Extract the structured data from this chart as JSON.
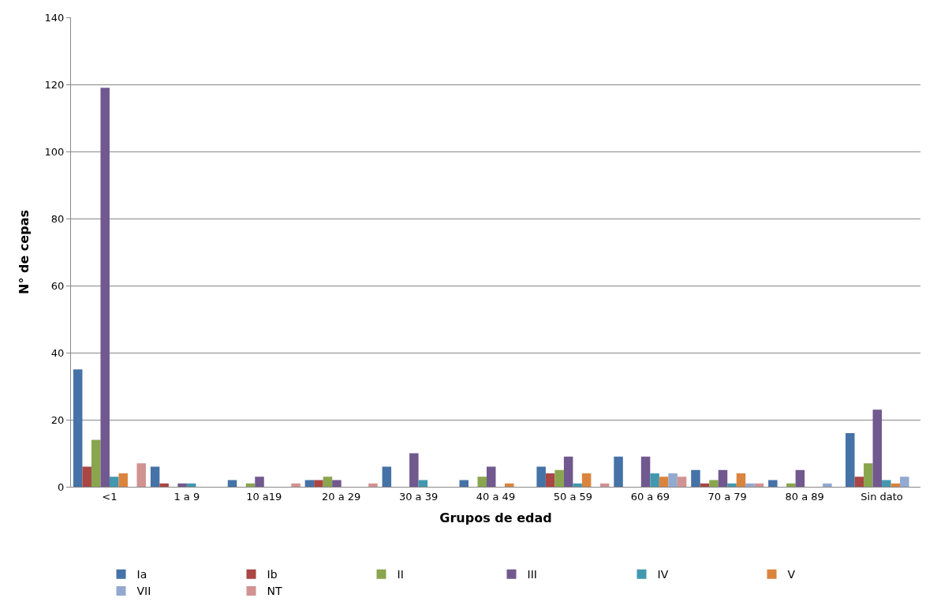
{
  "chart_data": {
    "type": "bar",
    "xlabel": "Grupos de edad",
    "ylabel": "N° de cepas",
    "categories": [
      "<1",
      "1 a 9",
      "10 a19",
      "20 a 29",
      "30 a 39",
      "40 a 49",
      "50 a 59",
      "60 a 69",
      "70 a 79",
      "80 a 89",
      "Sin dato"
    ],
    "series": [
      {
        "name": "Ia",
        "color": "#4572a7",
        "values": [
          35,
          6,
          2,
          2,
          6,
          2,
          6,
          9,
          5,
          2,
          16
        ]
      },
      {
        "name": "Ib",
        "color": "#aa4643",
        "values": [
          6,
          1,
          0,
          2,
          0,
          0,
          4,
          0,
          1,
          0,
          3
        ]
      },
      {
        "name": "II",
        "color": "#89a54e",
        "values": [
          14,
          0,
          1,
          3,
          0,
          3,
          5,
          0,
          2,
          1,
          7
        ]
      },
      {
        "name": "III",
        "color": "#71588f",
        "values": [
          119,
          1,
          3,
          2,
          10,
          6,
          9,
          9,
          5,
          5,
          23
        ]
      },
      {
        "name": "IV",
        "color": "#4198af",
        "values": [
          3,
          1,
          0,
          0,
          2,
          0,
          1,
          4,
          1,
          0,
          2
        ]
      },
      {
        "name": "V",
        "color": "#db843d",
        "values": [
          4,
          0,
          0,
          0,
          0,
          1,
          4,
          3,
          4,
          0,
          1
        ]
      },
      {
        "name": "VII",
        "color": "#93a9cf",
        "values": [
          0,
          0,
          0,
          0,
          0,
          0,
          0,
          4,
          1,
          1,
          3
        ]
      },
      {
        "name": "NT",
        "color": "#d19392",
        "values": [
          7,
          0,
          1,
          1,
          0,
          0,
          1,
          3,
          1,
          0,
          0
        ]
      }
    ],
    "ylim": [
      0,
      140
    ],
    "yticks": [
      0,
      20,
      40,
      60,
      80,
      100,
      120,
      140
    ],
    "grid": "y",
    "legend": "bottom"
  }
}
